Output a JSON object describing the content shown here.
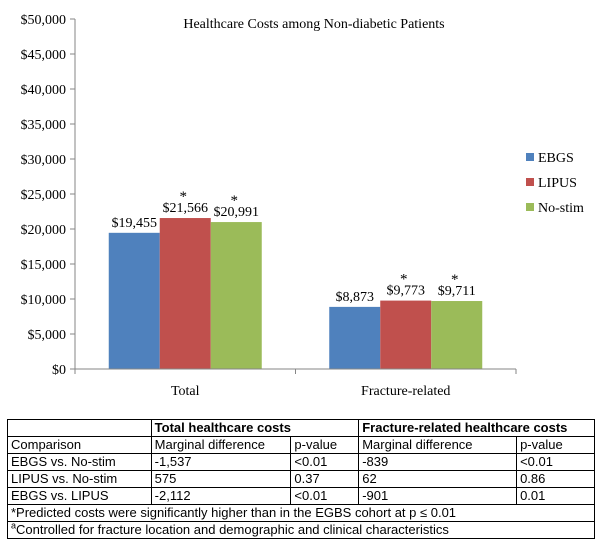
{
  "chart_data": {
    "type": "bar",
    "title": "Healthcare Costs among Non-diabetic Patients",
    "categories": [
      "Total",
      "Fracture-related"
    ],
    "series": [
      {
        "name": "EBGS",
        "color": "#4f81bd",
        "values": [
          19455,
          8873
        ],
        "labels": [
          "$19,455",
          "$8,873"
        ],
        "marked": [
          false,
          false
        ]
      },
      {
        "name": "LIPUS",
        "color": "#c0504d",
        "values": [
          21566,
          9773
        ],
        "labels": [
          "$21,566",
          "$9,773"
        ],
        "marked": [
          true,
          true
        ]
      },
      {
        "name": "No-stim",
        "color": "#9bbb59",
        "values": [
          20991,
          9711
        ],
        "labels": [
          "$20,991",
          "$9,711"
        ],
        "marked": [
          true,
          true
        ]
      }
    ],
    "ylim": [
      0,
      50000
    ],
    "yticks": [
      0,
      5000,
      10000,
      15000,
      20000,
      25000,
      30000,
      35000,
      40000,
      45000,
      50000
    ],
    "ytick_labels": [
      "$0",
      "$5,000",
      "$10,000",
      "$15,000",
      "$20,000",
      "$25,000",
      "$30,000",
      "$35,000",
      "$40,000",
      "$45,000",
      "$50,000"
    ],
    "marker_symbol": "*",
    "grid": false,
    "legend_position": "right"
  },
  "table": {
    "group_headers": [
      "Total healthcare costs",
      "Fracture-related healthcare costs"
    ],
    "sub_headers": [
      "Comparison",
      "Marginal difference",
      "p-value",
      "Marginal difference",
      "p-value"
    ],
    "rows": [
      [
        "EBGS vs. No-stim",
        "-1,537",
        "<0.01",
        "-839",
        "<0.01"
      ],
      [
        "LIPUS vs. No-stim",
        "575",
        "0.37",
        "62",
        "0.86"
      ],
      [
        "EBGS vs. LIPUS",
        "-2,112",
        "<0.01",
        "-901",
        "0.01"
      ]
    ],
    "footnote_1": "*Predicted costs were significantly higher than in the EGBS cohort at p ≤ 0.01",
    "footnote_2_mark": "a",
    "footnote_2": "Controlled for fracture location and demographic and clinical characteristics"
  }
}
